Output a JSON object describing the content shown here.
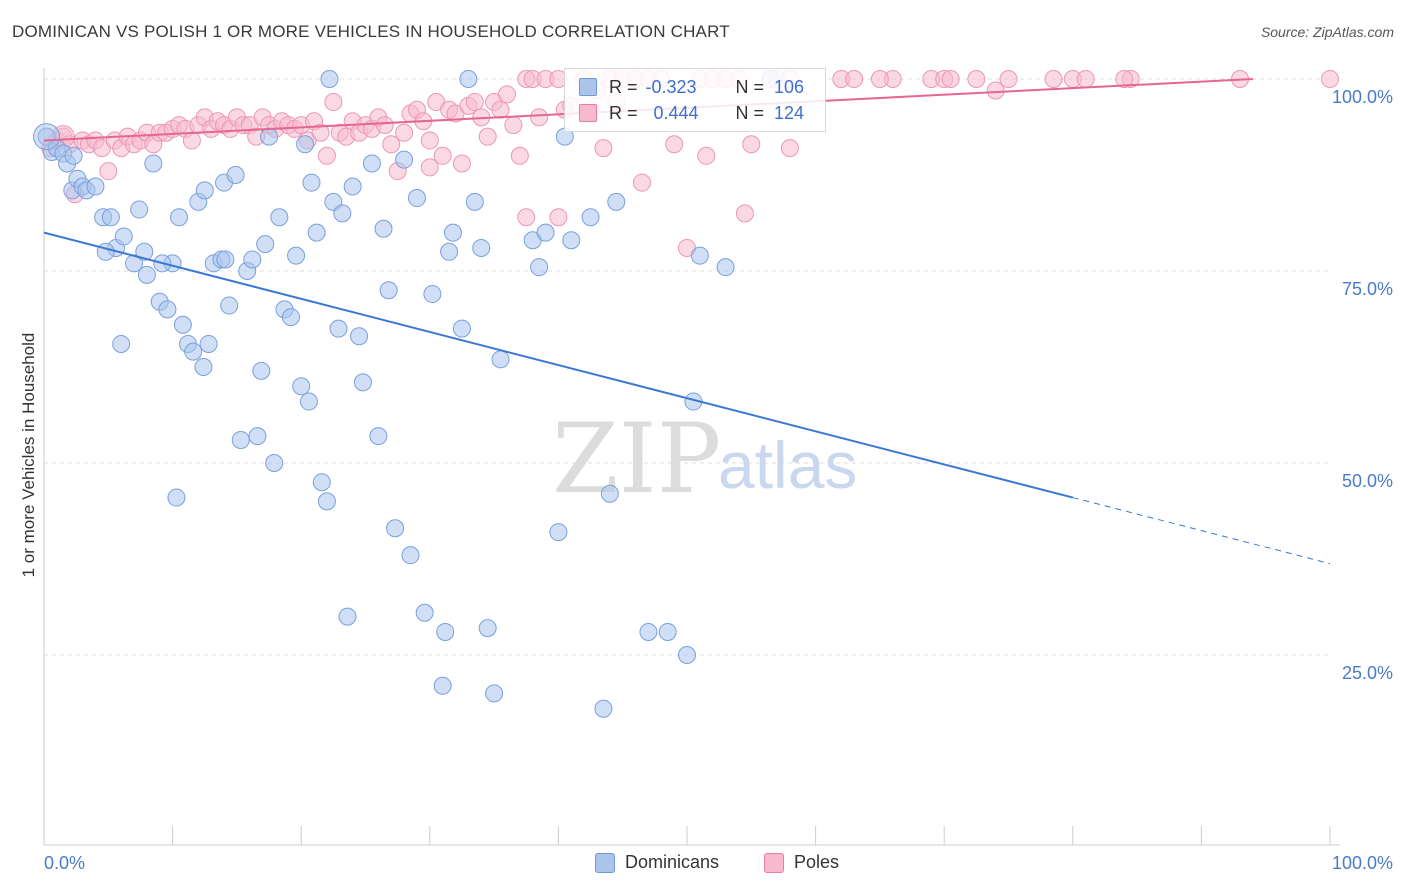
{
  "header": {
    "title": "DOMINICAN VS POLISH 1 OR MORE VEHICLES IN HOUSEHOLD CORRELATION CHART",
    "source": "Source: ZipAtlas.com"
  },
  "watermark": {
    "zip": "ZIP",
    "atlas": "atlas"
  },
  "legend": {
    "rows": [
      {
        "r_label": "R =",
        "r_value": "-0.323",
        "n_label": "N =",
        "n_value": "106",
        "color": "#aac4ec",
        "border": "#6f97d9"
      },
      {
        "r_label": "R =",
        "r_value": "0.444",
        "n_label": "N =",
        "n_value": "124",
        "color": "#f7b9cd",
        "border": "#e87fa3"
      }
    ]
  },
  "bottom_legend": {
    "items": [
      {
        "label": "Dominicans",
        "color": "#aac4ec",
        "border": "#6f97d9"
      },
      {
        "label": "Poles",
        "color": "#f7b9cd",
        "border": "#e87fa3"
      }
    ]
  },
  "colors": {
    "blue_fill": "#aac4ec",
    "blue_stroke": "#7aa0dc",
    "blue_line": "#3b78d4",
    "pink_fill": "#f7b9cd",
    "pink_stroke": "#ec97b4",
    "pink_line": "#e56690",
    "grid": "#dddddd",
    "axis": "#cccccc",
    "tick_text": "#4a7bc8"
  },
  "chart_data": {
    "type": "scatter",
    "title": "DOMINICAN VS POLISH 1 OR MORE VEHICLES IN HOUSEHOLD CORRELATION CHART",
    "xlabel": "",
    "ylabel": "1 or more Vehicles in Household",
    "xlim": [
      0,
      100
    ],
    "ylim": [
      0,
      103
    ],
    "x_tick_labels": [
      "0.0%",
      "100.0%"
    ],
    "y_ticks": [
      25,
      50,
      75,
      100
    ],
    "y_tick_labels": [
      "25.0%",
      "50.0%",
      "75.0%",
      "100.0%"
    ],
    "grid": true,
    "legend_placement": "top-center",
    "series": [
      {
        "name": "Dominicans",
        "r": -0.323,
        "n": 106,
        "trend": {
          "x0": 0,
          "y0": 80.0,
          "x1": 80,
          "y1": 45.5,
          "dash_to_x": 100,
          "dash_to_y": 36.9
        },
        "points": [
          [
            0.2,
            92.5
          ],
          [
            0.6,
            90.5
          ],
          [
            1.0,
            91.0
          ],
          [
            1.5,
            90.3
          ],
          [
            2.2,
            85.5
          ],
          [
            2.6,
            87.0
          ],
          [
            3.0,
            86.0
          ],
          [
            3.3,
            85.5
          ],
          [
            4.0,
            86.0
          ],
          [
            4.6,
            82.0
          ],
          [
            5.2,
            82.0
          ],
          [
            5.6,
            78.0
          ],
          [
            6.2,
            79.5
          ],
          [
            7.0,
            76.0
          ],
          [
            7.4,
            83.0
          ],
          [
            8.0,
            74.5
          ],
          [
            8.5,
            89.0
          ],
          [
            9.0,
            71.0
          ],
          [
            9.6,
            70.0
          ],
          [
            10.0,
            76.0
          ],
          [
            10.5,
            82.0
          ],
          [
            10.8,
            68.0
          ],
          [
            11.2,
            65.5
          ],
          [
            11.6,
            64.5
          ],
          [
            12.0,
            84.0
          ],
          [
            12.4,
            62.5
          ],
          [
            12.8,
            65.5
          ],
          [
            13.2,
            76.0
          ],
          [
            13.8,
            76.5
          ],
          [
            14.0,
            86.5
          ],
          [
            14.4,
            70.5
          ],
          [
            14.9,
            87.5
          ],
          [
            15.3,
            53.0
          ],
          [
            15.8,
            75.0
          ],
          [
            16.2,
            76.5
          ],
          [
            16.6,
            53.5
          ],
          [
            16.9,
            62.0
          ],
          [
            17.2,
            78.5
          ],
          [
            17.5,
            92.5
          ],
          [
            17.9,
            50.0
          ],
          [
            18.3,
            82.0
          ],
          [
            18.7,
            70.0
          ],
          [
            19.2,
            69.0
          ],
          [
            19.6,
            77.0
          ],
          [
            20.0,
            60.0
          ],
          [
            20.3,
            91.5
          ],
          [
            20.6,
            58.0
          ],
          [
            20.8,
            86.5
          ],
          [
            21.2,
            80.0
          ],
          [
            21.6,
            47.5
          ],
          [
            22.0,
            45.0
          ],
          [
            22.5,
            84.0
          ],
          [
            22.9,
            67.5
          ],
          [
            23.2,
            82.5
          ],
          [
            23.6,
            30.0
          ],
          [
            24.0,
            86.0
          ],
          [
            24.5,
            66.5
          ],
          [
            24.8,
            60.5
          ],
          [
            25.5,
            89.0
          ],
          [
            26.0,
            53.5
          ],
          [
            26.4,
            80.5
          ],
          [
            26.8,
            72.5
          ],
          [
            27.3,
            41.5
          ],
          [
            28.0,
            89.5
          ],
          [
            28.5,
            38.0
          ],
          [
            29.0,
            84.5
          ],
          [
            29.6,
            30.5
          ],
          [
            30.2,
            72.0
          ],
          [
            31.0,
            21.0
          ],
          [
            31.2,
            28.0
          ],
          [
            31.5,
            77.5
          ],
          [
            31.8,
            80.0
          ],
          [
            32.5,
            67.5
          ],
          [
            33.0,
            100.0
          ],
          [
            33.5,
            84.0
          ],
          [
            34.0,
            78.0
          ],
          [
            34.5,
            28.5
          ],
          [
            35.0,
            20.0
          ],
          [
            35.5,
            63.5
          ],
          [
            38.0,
            79.0
          ],
          [
            38.5,
            75.5
          ],
          [
            39.0,
            80.0
          ],
          [
            40.0,
            41.0
          ],
          [
            40.5,
            92.5
          ],
          [
            41.0,
            79.0
          ],
          [
            42.5,
            82.0
          ],
          [
            43.5,
            18.0
          ],
          [
            44.0,
            46.0
          ],
          [
            44.5,
            84.0
          ],
          [
            47.0,
            28.0
          ],
          [
            48.5,
            28.0
          ],
          [
            50.0,
            25.0
          ],
          [
            50.5,
            58.0
          ],
          [
            51.0,
            77.0
          ],
          [
            53.0,
            75.5
          ],
          [
            56.5,
            100.0
          ],
          [
            1.8,
            89.0
          ],
          [
            2.3,
            90.0
          ],
          [
            4.8,
            77.5
          ],
          [
            6.0,
            65.5
          ],
          [
            9.2,
            76.0
          ],
          [
            10.3,
            45.5
          ],
          [
            12.5,
            85.5
          ],
          [
            14.1,
            76.5
          ],
          [
            22.2,
            100.0
          ],
          [
            7.8,
            77.5
          ]
        ]
      },
      {
        "name": "Poles",
        "r": 0.444,
        "n": 124,
        "trend": {
          "x0": 0,
          "y0": 92.0,
          "x1": 94,
          "y1": 100.0
        },
        "points": [
          [
            0.5,
            91.0
          ],
          [
            1.0,
            92.0
          ],
          [
            1.5,
            92.5
          ],
          [
            2.0,
            91.5
          ],
          [
            2.4,
            85.0
          ],
          [
            3.0,
            92.0
          ],
          [
            3.5,
            91.5
          ],
          [
            4.0,
            92.0
          ],
          [
            4.5,
            91.0
          ],
          [
            5.0,
            88.0
          ],
          [
            5.5,
            92.0
          ],
          [
            6.0,
            91.0
          ],
          [
            6.5,
            92.5
          ],
          [
            7.0,
            91.5
          ],
          [
            7.5,
            92.0
          ],
          [
            8.0,
            93.0
          ],
          [
            8.5,
            91.5
          ],
          [
            9.0,
            93.0
          ],
          [
            9.5,
            93.0
          ],
          [
            10.0,
            93.5
          ],
          [
            10.5,
            94.0
          ],
          [
            11.0,
            93.5
          ],
          [
            11.5,
            92.0
          ],
          [
            12.0,
            94.0
          ],
          [
            12.5,
            95.0
          ],
          [
            13.0,
            93.5
          ],
          [
            13.5,
            94.5
          ],
          [
            14.0,
            94.0
          ],
          [
            14.5,
            93.5
          ],
          [
            15.0,
            95.0
          ],
          [
            15.5,
            94.0
          ],
          [
            16.0,
            94.0
          ],
          [
            16.5,
            92.5
          ],
          [
            17.0,
            95.0
          ],
          [
            17.5,
            94.0
          ],
          [
            18.0,
            93.5
          ],
          [
            18.5,
            94.5
          ],
          [
            19.0,
            94.0
          ],
          [
            19.5,
            93.5
          ],
          [
            20.0,
            94.0
          ],
          [
            20.5,
            92.0
          ],
          [
            21.0,
            94.5
          ],
          [
            21.5,
            93.0
          ],
          [
            22.0,
            90.0
          ],
          [
            22.5,
            97.0
          ],
          [
            23.0,
            93.0
          ],
          [
            23.5,
            92.5
          ],
          [
            24.0,
            94.5
          ],
          [
            24.5,
            93.0
          ],
          [
            25.0,
            94.0
          ],
          [
            25.5,
            93.5
          ],
          [
            26.0,
            95.0
          ],
          [
            26.5,
            94.0
          ],
          [
            27.0,
            91.5
          ],
          [
            27.5,
            88.0
          ],
          [
            28.0,
            93.0
          ],
          [
            28.5,
            95.5
          ],
          [
            29.0,
            96.0
          ],
          [
            29.5,
            94.5
          ],
          [
            30.0,
            92.0
          ],
          [
            30.5,
            97.0
          ],
          [
            31.0,
            90.0
          ],
          [
            31.5,
            96.0
          ],
          [
            32.0,
            95.5
          ],
          [
            32.5,
            89.0
          ],
          [
            33.0,
            96.5
          ],
          [
            33.5,
            97.0
          ],
          [
            34.0,
            95.0
          ],
          [
            34.5,
            92.5
          ],
          [
            35.0,
            97.0
          ],
          [
            35.5,
            96.0
          ],
          [
            36.0,
            98.0
          ],
          [
            36.5,
            94.0
          ],
          [
            37.0,
            90.0
          ],
          [
            37.5,
            100.0
          ],
          [
            38.0,
            100.0
          ],
          [
            38.5,
            95.0
          ],
          [
            39.0,
            100.0
          ],
          [
            40.0,
            100.0
          ],
          [
            40.5,
            96.0
          ],
          [
            41.0,
            96.5
          ],
          [
            42.0,
            100.0
          ],
          [
            42.5,
            96.0
          ],
          [
            43.0,
            98.5
          ],
          [
            44.0,
            100.0
          ],
          [
            44.5,
            97.0
          ],
          [
            45.0,
            100.0
          ],
          [
            46.0,
            100.0
          ],
          [
            47.0,
            100.0
          ],
          [
            48.0,
            100.0
          ],
          [
            49.0,
            91.5
          ],
          [
            50.0,
            78.0
          ],
          [
            51.0,
            100.0
          ],
          [
            52.0,
            100.0
          ],
          [
            53.0,
            100.0
          ],
          [
            54.0,
            100.0
          ],
          [
            55.0,
            91.5
          ],
          [
            57.0,
            100.0
          ],
          [
            58.0,
            100.0
          ],
          [
            62.0,
            100.0
          ],
          [
            63.0,
            100.0
          ],
          [
            66.0,
            100.0
          ],
          [
            69.0,
            100.0
          ],
          [
            70.0,
            100.0
          ],
          [
            72.5,
            100.0
          ],
          [
            74.0,
            98.5
          ],
          [
            75.0,
            100.0
          ],
          [
            78.5,
            100.0
          ],
          [
            80.0,
            100.0
          ],
          [
            84.5,
            100.0
          ],
          [
            84.0,
            100.0
          ],
          [
            93.0,
            100.0
          ],
          [
            100.0,
            100.0
          ],
          [
            43.5,
            91.0
          ],
          [
            46.5,
            86.5
          ],
          [
            51.5,
            90.0
          ],
          [
            54.5,
            82.5
          ],
          [
            37.5,
            82.0
          ],
          [
            40.0,
            82.0
          ],
          [
            30.0,
            88.5
          ],
          [
            58.0,
            91.0
          ],
          [
            65.0,
            100.0
          ],
          [
            70.5,
            100.0
          ],
          [
            81.0,
            100.0
          ]
        ]
      }
    ]
  }
}
